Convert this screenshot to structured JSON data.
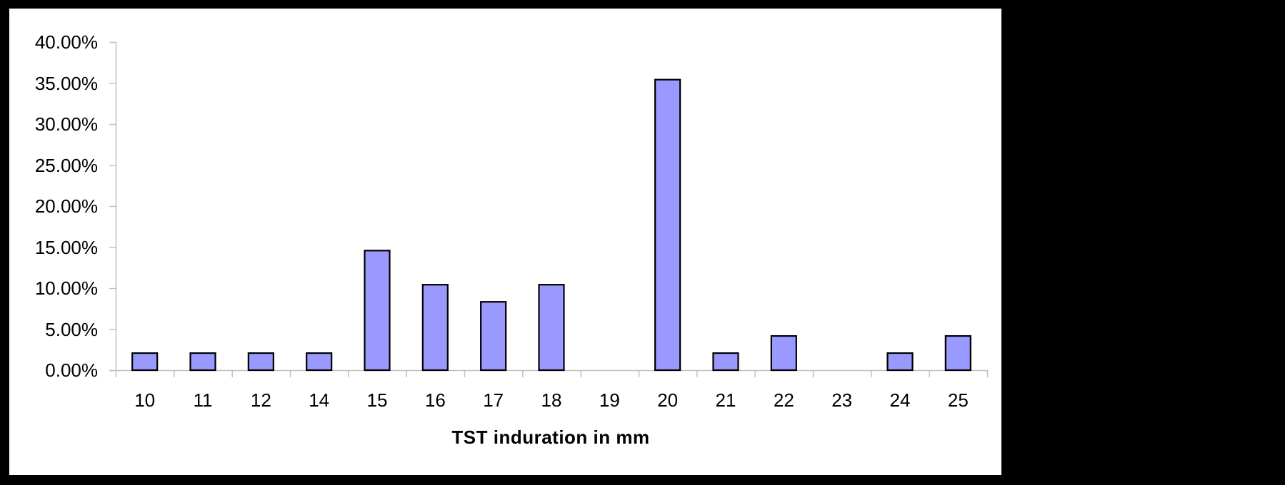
{
  "chart_data": {
    "type": "bar",
    "title": "",
    "xlabel": "TST induration in mm",
    "ylabel": "",
    "categories": [
      "10",
      "11",
      "12",
      "14",
      "15",
      "16",
      "17",
      "18",
      "19",
      "20",
      "21",
      "22",
      "23",
      "24",
      "25"
    ],
    "values": [
      2.08,
      2.08,
      2.08,
      2.08,
      14.58,
      10.42,
      8.33,
      10.42,
      0,
      35.42,
      2.08,
      4.17,
      0,
      2.08,
      4.17
    ],
    "value_format": "percent",
    "ylim": [
      0,
      40
    ],
    "yticks": [
      "0.00%",
      "5.00%",
      "10.00%",
      "15.00%",
      "20.00%",
      "25.00%",
      "30.00%",
      "35.00%",
      "40.00%"
    ],
    "grid": false,
    "legend": null,
    "bar_color": "#9999FF",
    "bar_edge_color": "#000000",
    "axis_color": "#C0C0C0"
  }
}
